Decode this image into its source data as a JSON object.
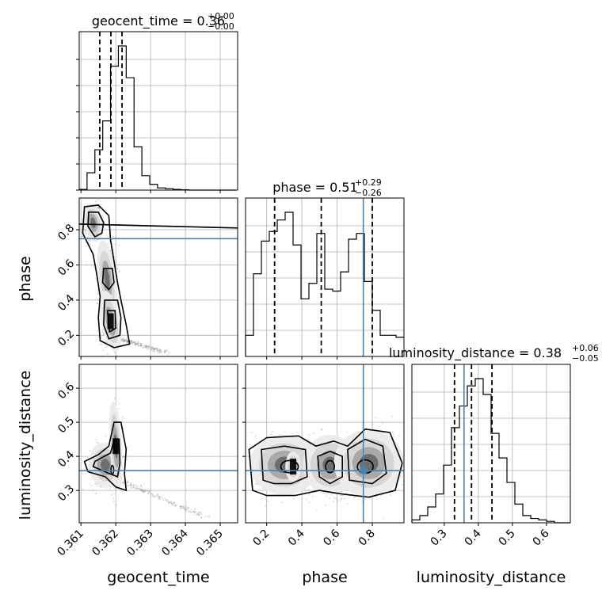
{
  "chart_data": {
    "type": "corner",
    "parameters": [
      {
        "key": "geocent_time",
        "label": "geocent_time",
        "range": [
          0.36095,
          0.3655
        ],
        "ticks": [
          "0.361",
          "0.362",
          "0.363",
          "0.364",
          "0.365"
        ],
        "tick_values": [
          0.361,
          0.362,
          0.363,
          0.364,
          0.365
        ]
      },
      {
        "key": "phase",
        "label": "phase",
        "range": [
          0.08,
          0.98
        ],
        "ticks": [
          "0.2",
          "0.4",
          "0.6",
          "0.8"
        ],
        "tick_values": [
          0.2,
          0.4,
          0.6,
          0.8
        ]
      },
      {
        "key": "luminosity_distance",
        "label": "luminosity_distance",
        "range": [
          0.205,
          0.67
        ],
        "ticks": [
          "0.3",
          "0.4",
          "0.5",
          "0.6"
        ],
        "tick_values": [
          0.3,
          0.4,
          0.5,
          0.6
        ]
      }
    ],
    "titles": [
      {
        "name": "geocent_time",
        "value": "0.36",
        "plus": "+0.00",
        "minus": "−0.00"
      },
      {
        "name": "phase",
        "value": "0.51",
        "plus": "+0.29",
        "minus": "−0.26"
      },
      {
        "name": "luminosity_distance",
        "value": "0.38",
        "plus": "+0.06",
        "minus": "−0.05"
      }
    ],
    "truths": {
      "geocent_time": null,
      "phase": 0.749,
      "luminosity_distance": 0.358
    },
    "quantiles": {
      "geocent_time": [
        0.36154,
        0.36186,
        0.36218
      ],
      "phase": [
        0.245,
        0.51,
        0.8
      ],
      "luminosity_distance": [
        0.33,
        0.38,
        0.44
      ]
    },
    "histograms": {
      "geocent_time": {
        "edges_start": 0.36095,
        "bin_width": 0.000225,
        "counts": [
          0.005,
          0.12,
          0.28,
          0.48,
          0.86,
          1.0,
          0.78,
          0.3,
          0.1,
          0.04,
          0.015,
          0.01,
          0.005,
          0.002,
          0,
          0,
          0,
          0,
          0,
          0
        ]
      },
      "phase": {
        "edges_start": 0.08,
        "bin_width": 0.045,
        "counts": [
          0.11,
          0.43,
          0.6,
          0.65,
          0.71,
          0.75,
          0.58,
          0.3,
          0.38,
          0.64,
          0.35,
          0.34,
          0.44,
          0.61,
          0.64,
          0.39,
          0.24,
          0.11,
          0.11,
          0.1
        ]
      },
      "luminosity_distance": {
        "edges_start": 0.205,
        "bin_width": 0.02325,
        "counts": [
          0.02,
          0.05,
          0.11,
          0.2,
          0.4,
          0.66,
          0.81,
          0.95,
          1.0,
          0.89,
          0.62,
          0.45,
          0.28,
          0.13,
          0.05,
          0.03,
          0.02,
          0.01,
          0.0,
          0.0
        ]
      }
    },
    "grid": true
  }
}
